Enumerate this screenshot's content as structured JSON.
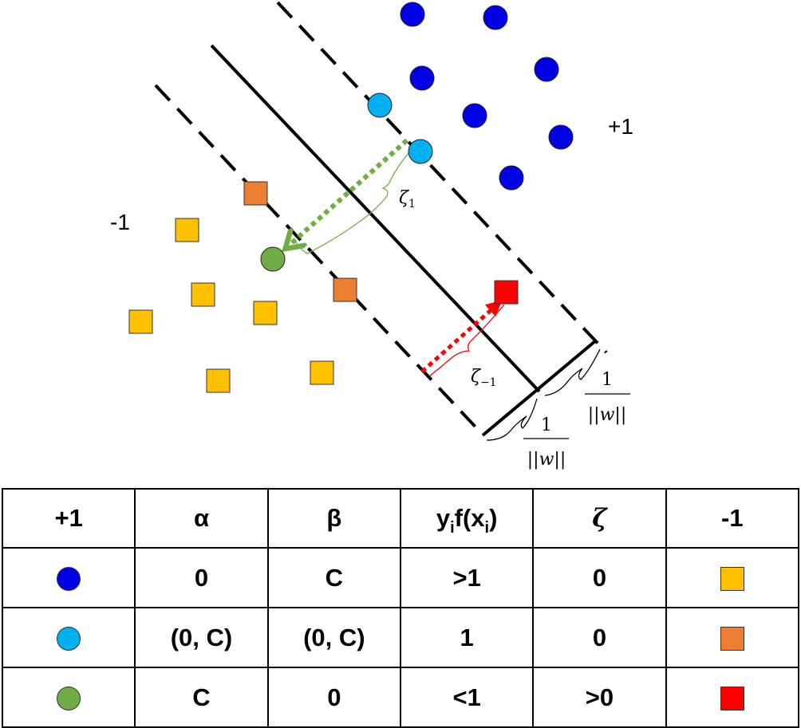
{
  "diagram": {
    "class_pos_label": "+1",
    "class_neg_label": "-1",
    "zeta_1": {
      "base": "ζ",
      "sub": "1"
    },
    "zeta_neg1": {
      "base": "ζ",
      "sub": "−1"
    },
    "margin_fraction": {
      "numerator": "1",
      "denominator": "||w||"
    }
  },
  "colors": {
    "blue": "#0000e6",
    "light_blue": "#00b0f0",
    "green": "#70ad47",
    "yellow": "#ffc000",
    "orange": "#ed7d31",
    "red": "#ff0000"
  },
  "table": {
    "headers": [
      {
        "text": "+1"
      },
      {
        "text": "α"
      },
      {
        "text": "β"
      },
      {
        "prefix": "y",
        "sub1": "i",
        "mid": "f(x",
        "sub2": "i",
        "suffix": ")"
      },
      {
        "text": "ζ"
      },
      {
        "text": "-1"
      }
    ],
    "rows": [
      {
        "pos_icon": "blue-dot-icon",
        "pos_color": "#0000e6",
        "alpha": "0",
        "beta": "C",
        "yf": ">1",
        "zeta": "0",
        "neg_icon": "yellow-square-icon",
        "neg_color": "#ffc000"
      },
      {
        "pos_icon": "light-blue-dot-icon",
        "pos_color": "#00b0f0",
        "alpha": "(0, C)",
        "beta": "(0, C)",
        "yf": "1",
        "zeta": "0",
        "neg_icon": "orange-square-icon",
        "neg_color": "#ed7d31"
      },
      {
        "pos_icon": "green-dot-icon",
        "pos_color": "#70ad47",
        "alpha": "C",
        "beta": "0",
        "yf": "<1",
        "zeta": ">0",
        "neg_icon": "red-square-icon",
        "neg_color": "#ff0000"
      }
    ]
  }
}
